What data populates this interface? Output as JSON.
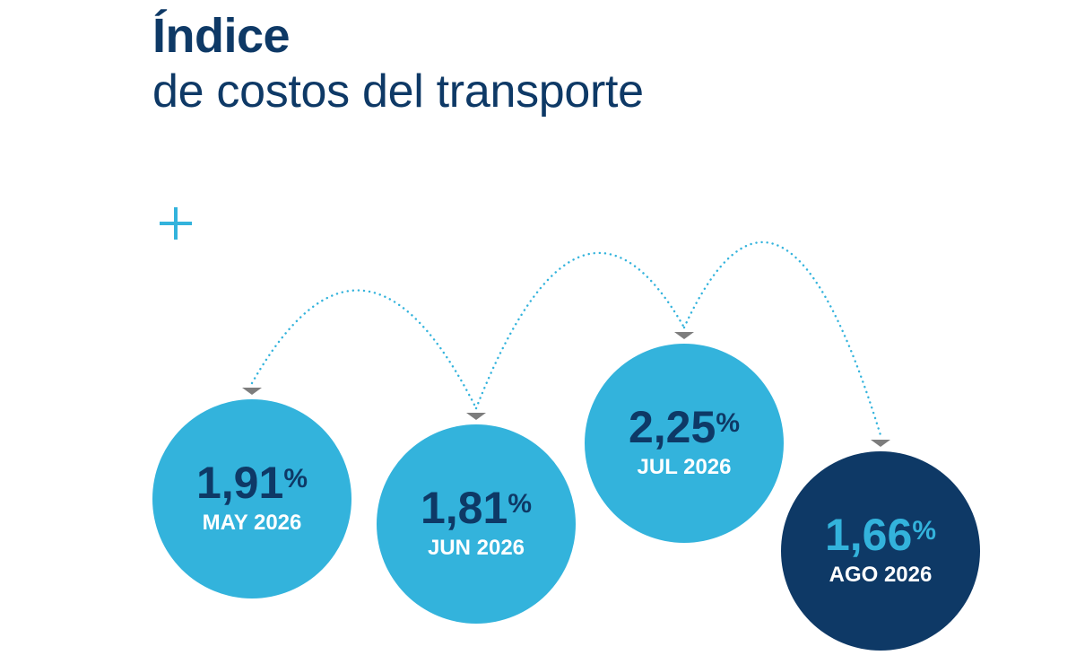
{
  "header": {
    "title": "Índice",
    "subtitle": "de costos del transporte"
  },
  "decor": {
    "plus_icon": "plus-icon"
  },
  "colors": {
    "title": "#0e3966",
    "bubble_light": "#33b3dc",
    "bubble_dark": "#0e3966",
    "value_on_light": "#0e3966",
    "value_on_dark": "#33b3dc",
    "label": "#ffffff",
    "connector": "#33b3dc",
    "arrowhead": "#7d7d7d"
  },
  "chart_data": {
    "type": "bubble-sequence",
    "unit": "%",
    "points": [
      {
        "label": "MAY 2026",
        "value": "1,91",
        "numeric": 1.91,
        "highlight": false
      },
      {
        "label": "JUN 2026",
        "value": "1,81",
        "numeric": 1.81,
        "highlight": false
      },
      {
        "label": "JUL 2026",
        "value": "2,25",
        "numeric": 2.25,
        "highlight": false
      },
      {
        "label": "AGO 2026",
        "value": "1,66",
        "numeric": 1.66,
        "highlight": true
      }
    ]
  }
}
